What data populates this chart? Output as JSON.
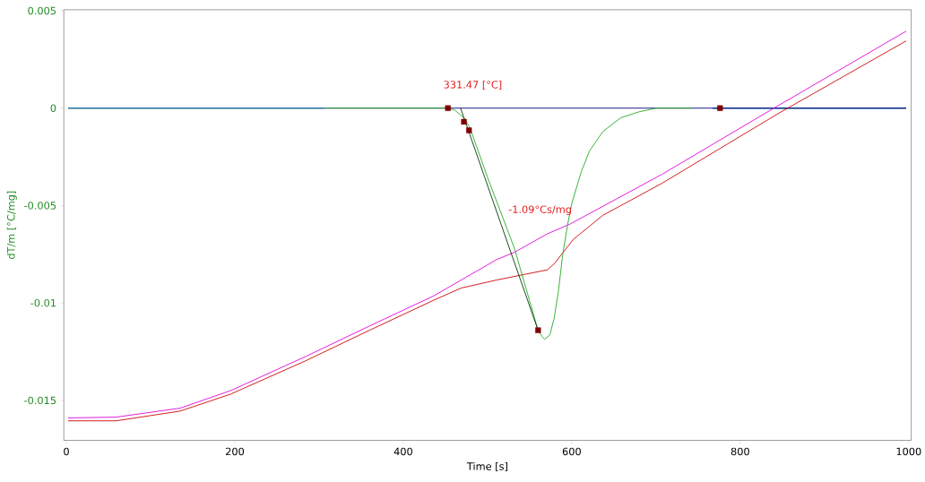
{
  "chart_data": {
    "type": "line",
    "xlabel": "Time [s]",
    "ylabel": "dT/m  [°C/mg]",
    "xlim": [
      -3,
      1003
    ],
    "ylim": [
      -0.01705,
      0.00505
    ],
    "xticks": [
      0,
      200,
      400,
      600,
      800,
      1000
    ],
    "yticks": [
      -0.015,
      -0.01,
      -0.005,
      0,
      0.005
    ],
    "series": [
      {
        "type": "scatter",
        "marker": "square",
        "color": "#800000",
        "x": [
          453,
          472,
          478,
          560,
          776
        ],
        "values": [
          0,
          -0.0007,
          -0.00114,
          -0.0114,
          0
        ]
      },
      {
        "color": "#1f6f9f",
        "x": [
          2,
          306,
          null,
          767,
          997
        ],
        "values": [
          0,
          0,
          null,
          0,
          0
        ]
      },
      {
        "color": "#000080",
        "x": [
          306,
          997
        ],
        "values": [
          0,
          0
        ]
      },
      {
        "color": "#cc0000",
        "x": [
          2,
          59,
          135,
          195,
          285,
          360,
          436,
          469,
          511,
          571,
          579,
          602,
          637,
          707,
          847,
          997
        ],
        "values": [
          -0.01605,
          -0.01605,
          -0.01555,
          -0.01468,
          -0.01295,
          -0.0114,
          -0.00986,
          -0.00923,
          -0.00882,
          -0.0083,
          -0.008,
          -0.00673,
          -0.0055,
          -0.00386,
          -0.00023,
          0.00345
        ]
      },
      {
        "color": "#dd00dd",
        "x": [
          2,
          59,
          135,
          195,
          285,
          360,
          436,
          511,
          532,
          571,
          598,
          707,
          840,
          997
        ],
        "values": [
          -0.0159,
          -0.01586,
          -0.0154,
          -0.0145,
          -0.01273,
          -0.01118,
          -0.00964,
          -0.00777,
          -0.0074,
          -0.00645,
          -0.00595,
          -0.0034,
          0,
          0.00395
        ]
      },
      {
        "color": "#22aa22",
        "x": [
          307,
          453,
          461,
          472,
          479,
          500,
          532,
          560,
          565,
          568,
          574,
          579,
          584,
          589,
          595,
          600,
          611,
          621,
          637,
          658,
          679,
          700,
          742
        ],
        "values": [
          0,
          0,
          -0.0001,
          -0.0005,
          -0.001,
          -0.00355,
          -0.0072,
          -0.0114,
          -0.01173,
          -0.01186,
          -0.01164,
          -0.0108,
          -0.00945,
          -0.0076,
          -0.006,
          -0.0049,
          -0.0033,
          -0.0022,
          -0.0012,
          -0.0005,
          -0.0002,
          0,
          0
        ]
      },
      {
        "color": "#003300",
        "x": [
          468,
          560
        ],
        "values": [
          0,
          -0.0114
        ]
      }
    ],
    "annotations": [
      "331.47 [°C]",
      "-1.09°Cs/mg"
    ]
  }
}
